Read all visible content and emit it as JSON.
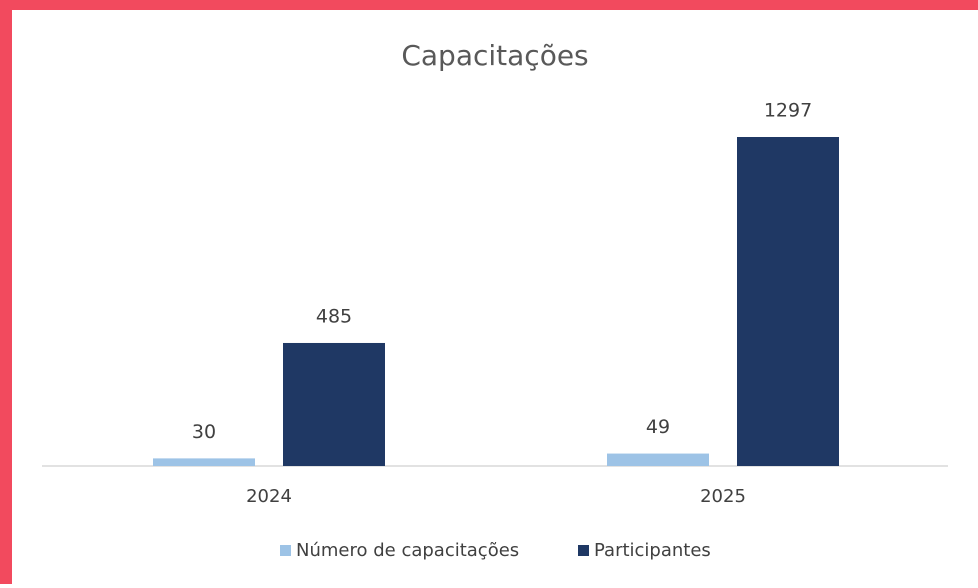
{
  "chart_data": {
    "type": "bar",
    "title": "Capacitações",
    "categories": [
      "2024",
      "2025"
    ],
    "series": [
      {
        "name": "Número de capacitações",
        "color": "#9dc3e6",
        "values": [
          30,
          49
        ]
      },
      {
        "name": "Participantes",
        "color": "#1f3864",
        "values": [
          485,
          1297
        ]
      }
    ],
    "legend": "bottom"
  }
}
